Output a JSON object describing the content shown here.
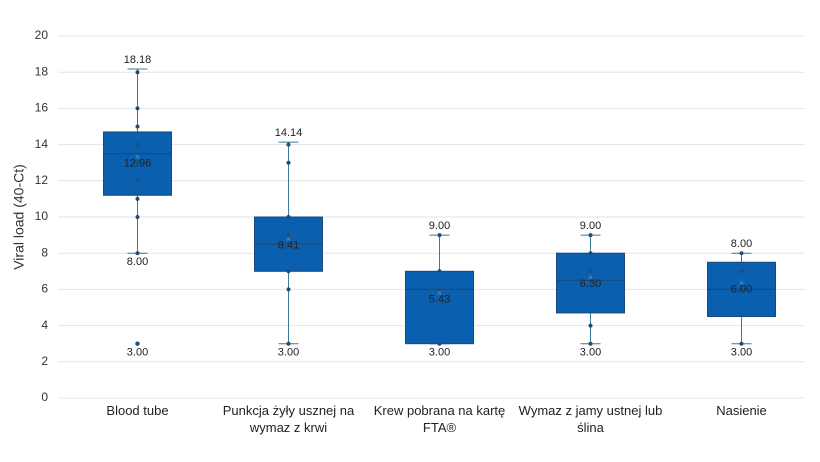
{
  "chart_data": {
    "type": "box",
    "y_label": "Viral load (40-Ct)",
    "ylim": [
      0,
      20
    ],
    "yticks": [
      0,
      2,
      4,
      6,
      8,
      10,
      12,
      14,
      16,
      18,
      20
    ],
    "grid": true,
    "color": "#0a5fae",
    "boxes": [
      {
        "category": "Blood tube",
        "min": 8,
        "q1": 11.2,
        "median": 13.5,
        "q3": 14.7,
        "max": 18.18,
        "mean": 12.96,
        "outliers": [
          3
        ],
        "points": [
          18,
          16,
          15,
          14,
          13,
          12,
          11,
          10,
          8
        ],
        "max_label": "18.18",
        "mean_label": "12.96",
        "min_label": "8.00",
        "outlier_labels": [
          "3.00"
        ]
      },
      {
        "category": "Punkcja żyły usznej na wymaz z krwi",
        "min": 3,
        "q1": 7,
        "median": 8.5,
        "q3": 10,
        "max": 14.14,
        "mean": 8.41,
        "outliers": [],
        "points": [
          14,
          13,
          10,
          9,
          7,
          6,
          3
        ],
        "max_label": "14.14",
        "mean_label": "8.41",
        "min_label": "3.00",
        "outlier_labels": []
      },
      {
        "category": "Krew pobrana na kartę FTA®",
        "min": 3,
        "q1": 3,
        "median": 6,
        "q3": 7,
        "max": 9,
        "mean": 5.43,
        "outliers": [],
        "points": [
          9,
          7,
          6,
          3
        ],
        "max_label": "9.00",
        "mean_label": "5.43",
        "min_label": "3.00",
        "outlier_labels": []
      },
      {
        "category": "Wymaz z jamy ustnej lub ślina",
        "min": 3,
        "q1": 4.7,
        "median": 6.5,
        "q3": 8,
        "max": 9,
        "mean": 6.3,
        "outliers": [],
        "points": [
          9,
          8,
          7,
          4,
          3
        ],
        "max_label": "9.00",
        "mean_label": "6.30",
        "min_label": "3.00",
        "outlier_labels": []
      },
      {
        "category": "Nasienie",
        "min": 3,
        "q1": 4.5,
        "median": 6,
        "q3": 7.5,
        "max": 8,
        "mean": 6,
        "outliers": [],
        "points": [
          8,
          7,
          6,
          3
        ],
        "max_label": "8.00",
        "mean_label": "6.00",
        "min_label": "3.00",
        "outlier_labels": []
      }
    ]
  }
}
